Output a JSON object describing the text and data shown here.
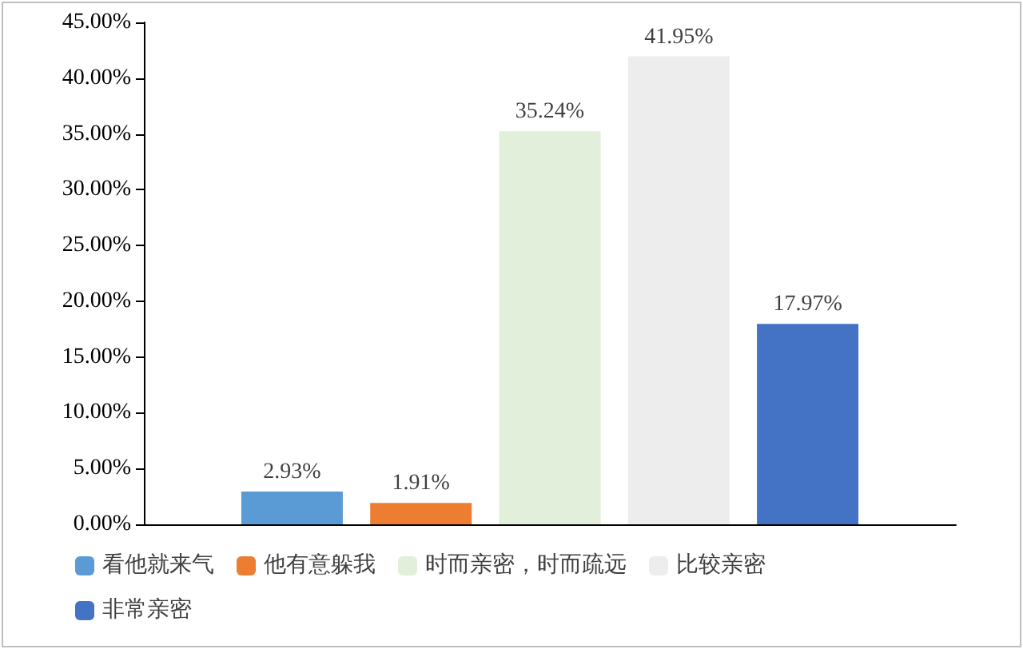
{
  "chart_data": {
    "type": "bar",
    "categories": [
      null
    ],
    "series": [
      {
        "name": "看他就来气",
        "color": "#5b9bd5",
        "values": [
          2.93
        ],
        "value_labels": [
          "2.93%"
        ]
      },
      {
        "name": "他有意躲我",
        "color": "#ed7d31",
        "values": [
          1.91
        ],
        "value_labels": [
          "1.91%"
        ]
      },
      {
        "name": "时而亲密，时而疏远",
        "color": "#e2efda",
        "values": [
          35.24
        ],
        "value_labels": [
          "35.24%"
        ]
      },
      {
        "name": "比较亲密",
        "color": "#ededed",
        "values": [
          41.95
        ],
        "value_labels": [
          "41.95%"
        ]
      },
      {
        "name": "非常亲密",
        "color": "#4472c4",
        "values": [
          17.97
        ],
        "value_labels": [
          "17.97%"
        ]
      }
    ],
    "ylim": [
      0,
      45
    ],
    "yticks": [
      {
        "value": 0,
        "label": "0.00%"
      },
      {
        "value": 5,
        "label": "5.00%"
      },
      {
        "value": 10,
        "label": "10.00%"
      },
      {
        "value": 15,
        "label": "15.00%"
      },
      {
        "value": 20,
        "label": "20.00%"
      },
      {
        "value": 25,
        "label": "25.00%"
      },
      {
        "value": 30,
        "label": "30.00%"
      },
      {
        "value": 35,
        "label": "35.00%"
      },
      {
        "value": 40,
        "label": "40.00%"
      },
      {
        "value": 45,
        "label": "45.00%"
      }
    ],
    "grid": false,
    "legend": "bottom"
  }
}
